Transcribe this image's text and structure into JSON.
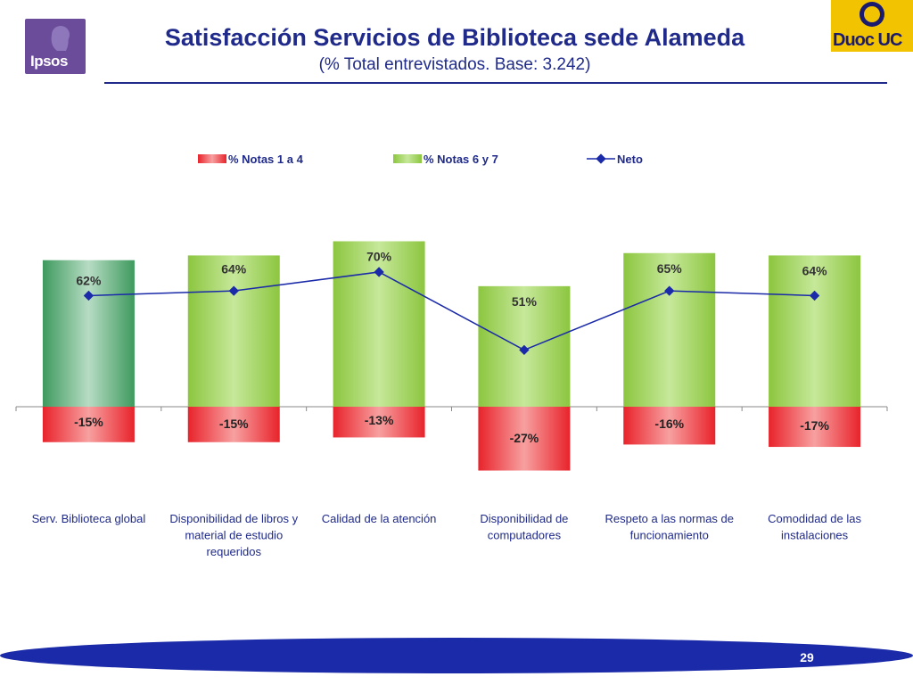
{
  "header": {
    "title": "Satisfacción Servicios de Biblioteca sede Alameda",
    "subtitle": "(% Total entrevistados. Base: 3.242)",
    "logo_left": "Ipsos",
    "logo_right": "Duoc UC"
  },
  "chart_data": {
    "type": "bar",
    "categories": [
      "Serv. Biblioteca global",
      "Disponibilidad de libros y material de estudio requeridos",
      "Calidad de la atención",
      "Disponibilidad de computadores",
      "Respeto a las normas de funcionamiento",
      "Comodidad de las instalaciones"
    ],
    "category_lines": [
      [
        "Serv. Biblioteca global"
      ],
      [
        "Disponibilidad de libros y",
        "material de estudio",
        "requeridos"
      ],
      [
        "Calidad de la atención"
      ],
      [
        "Disponibilidad de",
        "computadores"
      ],
      [
        "Respeto a las normas de",
        "funcionamiento"
      ],
      [
        "Comodidad de las",
        "instalaciones"
      ]
    ],
    "series": [
      {
        "name": "% Notas 1 a 4",
        "type": "bar",
        "values": [
          -15,
          -15,
          -13,
          -27,
          -16,
          -17
        ],
        "labels": [
          "-15%",
          "-15%",
          "-13%",
          "-27%",
          "-16%",
          "-17%"
        ],
        "color": "#e8232b"
      },
      {
        "name": "% Notas 6 y 7",
        "type": "bar",
        "values": [
          62,
          64,
          70,
          51,
          65,
          64
        ],
        "labels": [
          "62%",
          "64%",
          "70%",
          "51%",
          "65%",
          "64%"
        ],
        "color": "#8cc63f"
      },
      {
        "name": "Neto",
        "type": "line",
        "values": [
          47,
          49,
          57,
          24,
          49,
          47
        ],
        "color": "#1a2aa8"
      }
    ],
    "highlight_color": "#3e9a5e",
    "ylim": [
      -30,
      75
    ],
    "legend_position": "top"
  },
  "footer": {
    "page_number": "29"
  }
}
